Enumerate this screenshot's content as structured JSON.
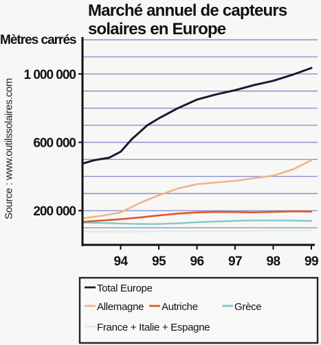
{
  "chart_data": {
    "type": "line",
    "title_line1": "Marché annuel de capteurs",
    "title_line2": "solaires en Europe",
    "ylabel": "Mètres carrés",
    "source": "Source :  www.outilssolaires.com",
    "xlim": [
      93.0,
      99.1
    ],
    "ylim": [
      0,
      1200000
    ],
    "x_ticks": [
      94,
      95,
      96,
      97,
      98,
      99
    ],
    "x_tick_labels": [
      "94",
      "95",
      "96",
      "97",
      "98",
      "99"
    ],
    "y_ticks": [
      200000,
      600000,
      1000000
    ],
    "y_tick_labels": [
      "200 000",
      "600 000",
      "1 000 000"
    ],
    "grid_values": [
      100000,
      200000,
      300000,
      400000,
      500000,
      600000,
      700000,
      800000,
      900000,
      1000000,
      1100000,
      1200000
    ],
    "series": [
      {
        "name": "Total Europe",
        "color": "#1a1a2e",
        "width": 3.0,
        "x": [
          93.0,
          93.3,
          93.7,
          94.0,
          94.3,
          94.7,
          95.0,
          95.5,
          96.0,
          96.5,
          97.0,
          97.5,
          98.0,
          98.5,
          99.0
        ],
        "y": [
          475000,
          495000,
          510000,
          545000,
          620000,
          700000,
          740000,
          800000,
          850000,
          880000,
          905000,
          935000,
          960000,
          995000,
          1035000
        ]
      },
      {
        "name": "Allemagne",
        "color": "#f0b48a",
        "width": 2.6,
        "x": [
          93.0,
          93.5,
          94.0,
          94.5,
          95.0,
          95.5,
          96.0,
          96.5,
          97.0,
          97.5,
          98.0,
          98.5,
          99.0
        ],
        "y": [
          155000,
          170000,
          190000,
          245000,
          290000,
          330000,
          355000,
          365000,
          375000,
          390000,
          405000,
          440000,
          495000
        ]
      },
      {
        "name": "Autriche",
        "color": "#e2562b",
        "width": 2.6,
        "x": [
          93.0,
          93.5,
          94.0,
          94.5,
          95.0,
          95.5,
          96.0,
          96.5,
          97.0,
          97.5,
          98.0,
          98.5,
          99.0
        ],
        "y": [
          135000,
          142000,
          150000,
          160000,
          172000,
          183000,
          190000,
          193000,
          192000,
          190000,
          193000,
          196000,
          195000
        ]
      },
      {
        "name": "Grèce",
        "color": "#7fc8c8",
        "width": 2.4,
        "x": [
          93.0,
          93.5,
          94.0,
          94.5,
          95.0,
          95.5,
          96.0,
          96.5,
          97.0,
          97.5,
          98.0,
          98.5,
          99.0
        ],
        "y": [
          130000,
          128000,
          125000,
          122000,
          122000,
          126000,
          132000,
          137000,
          141000,
          143000,
          143000,
          142000,
          140000
        ]
      },
      {
        "name": "France + Italie + Espagne",
        "color": "#d8ecec",
        "width": 2.2,
        "x": [
          93.0,
          93.5,
          94.0,
          94.5,
          95.0,
          95.5,
          96.0,
          96.5,
          97.0,
          97.5,
          98.0,
          98.5,
          99.0
        ],
        "y": [
          78000,
          78000,
          78000,
          78000,
          79000,
          79000,
          80000,
          81000,
          81000,
          82000,
          83000,
          83000,
          85000
        ]
      }
    ],
    "legend": {
      "placement": "bottom",
      "rows": [
        [
          "Total Europe"
        ],
        [
          "Allemagne",
          "Autriche",
          "Grèce"
        ],
        [
          "France + Italie + Espagne"
        ]
      ]
    },
    "colors": {
      "grid": "#8b8fd0",
      "axis": "#111111",
      "background": "#f7f7f5"
    }
  }
}
